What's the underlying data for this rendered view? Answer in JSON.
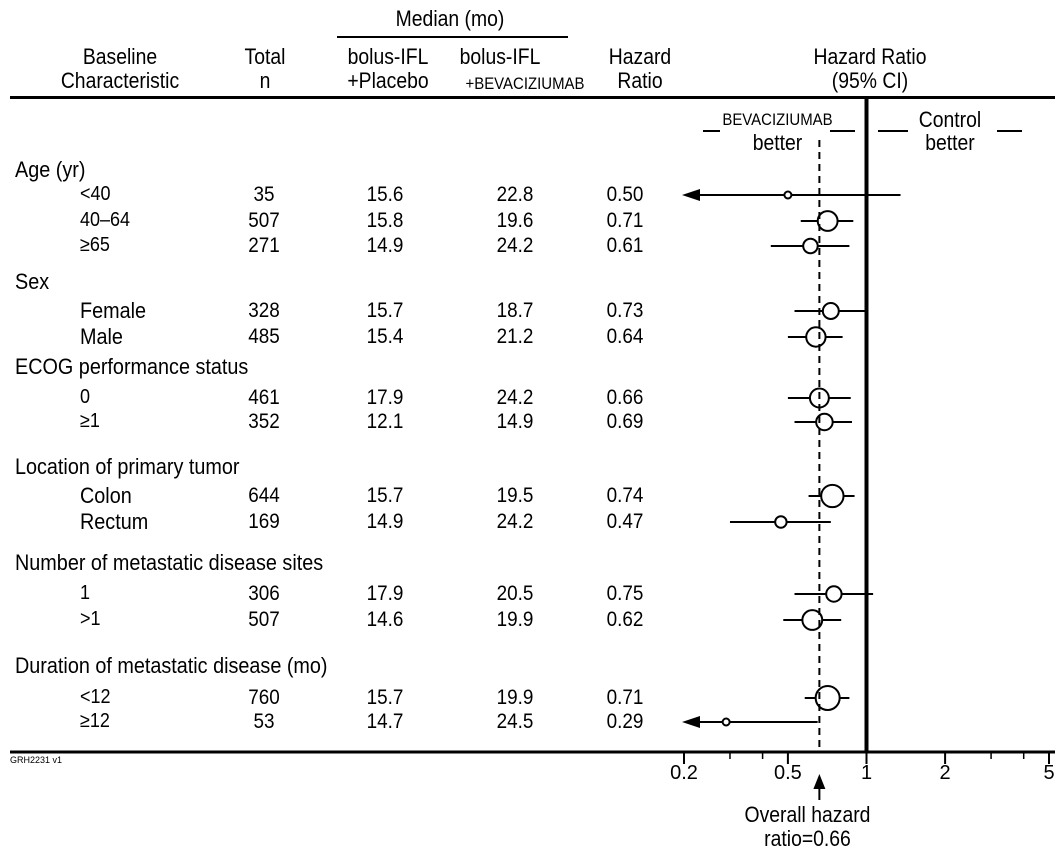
{
  "header": {
    "median_group": "Median (mo)",
    "col_characteristic": [
      "Baseline",
      "Characteristic"
    ],
    "col_total": [
      "Total",
      "n"
    ],
    "col_placebo": [
      "bolus-IFL",
      "+Placebo"
    ],
    "col_bev": [
      "bolus-IFL",
      "+BEVACIZIUMAB"
    ],
    "col_hr": [
      "Hazard",
      "Ratio"
    ],
    "col_ci": [
      "Hazard Ratio",
      "(95% CI)"
    ],
    "favors_left": [
      "BEVACIZIUMAB",
      "better"
    ],
    "favors_right": [
      "Control",
      "better"
    ]
  },
  "footer": {
    "code": "GRH2231 v1",
    "overall_label": [
      "Overall hazard",
      "ratio=0.66"
    ]
  },
  "chart_data": {
    "type": "forest",
    "x_scale": "log",
    "x_ticks": [
      0.2,
      0.5,
      1,
      2,
      5
    ],
    "x_tick_labels": [
      "0.2",
      "0.5",
      "1",
      "2",
      "5"
    ],
    "xlim": [
      0.2,
      5
    ],
    "reference_line": 1,
    "overall_hr": 0.66,
    "groups": [
      {
        "label": "Age (yr)",
        "rows": [
          {
            "label": "<40",
            "n": "35",
            "placebo": "15.6",
            "bev": "22.8",
            "hr_text": "0.50",
            "hr": 0.5,
            "lo": 0.17,
            "hi": 1.35,
            "arrow_left": true
          },
          {
            "label": "40–64",
            "n": "507",
            "placebo": "15.8",
            "bev": "19.6",
            "hr_text": "0.71",
            "hr": 0.71,
            "lo": 0.56,
            "hi": 0.89
          },
          {
            "label": "≥65",
            "n": "271",
            "placebo": "14.9",
            "bev": "24.2",
            "hr_text": "0.61",
            "hr": 0.61,
            "lo": 0.43,
            "hi": 0.86
          }
        ]
      },
      {
        "label": "Sex",
        "rows": [
          {
            "label": "Female",
            "n": "328",
            "placebo": "15.7",
            "bev": "18.7",
            "hr_text": "0.73",
            "hr": 0.73,
            "lo": 0.53,
            "hi": 1.0
          },
          {
            "label": "Male",
            "n": "485",
            "placebo": "15.4",
            "bev": "21.2",
            "hr_text": "0.64",
            "hr": 0.64,
            "lo": 0.5,
            "hi": 0.81
          }
        ]
      },
      {
        "label": "ECOG performance status",
        "rows": [
          {
            "label": "0",
            "n": "461",
            "placebo": "17.9",
            "bev": "24.2",
            "hr_text": "0.66",
            "hr": 0.66,
            "lo": 0.5,
            "hi": 0.87
          },
          {
            "label": "≥1",
            "n": "352",
            "placebo": "12.1",
            "bev": "14.9",
            "hr_text": "0.69",
            "hr": 0.69,
            "lo": 0.53,
            "hi": 0.88
          }
        ]
      },
      {
        "label": "Location of primary tumor",
        "rows": [
          {
            "label": "Colon",
            "n": "644",
            "placebo": "15.7",
            "bev": "19.5",
            "hr_text": "0.74",
            "hr": 0.74,
            "lo": 0.6,
            "hi": 0.9
          },
          {
            "label": "Rectum",
            "n": "169",
            "placebo": "14.9",
            "bev": "24.2",
            "hr_text": "0.47",
            "hr": 0.47,
            "lo": 0.3,
            "hi": 0.73
          }
        ]
      },
      {
        "label": "Number of metastatic disease sites",
        "rows": [
          {
            "label": "1",
            "n": "306",
            "placebo": "17.9",
            "bev": "20.5",
            "hr_text": "0.75",
            "hr": 0.75,
            "lo": 0.53,
            "hi": 1.06
          },
          {
            "label": ">1",
            "n": "507",
            "placebo": "14.6",
            "bev": "19.9",
            "hr_text": "0.62",
            "hr": 0.62,
            "lo": 0.48,
            "hi": 0.8
          }
        ]
      },
      {
        "label": "Duration of metastatic disease (mo)",
        "rows": [
          {
            "label": "<12",
            "n": "760",
            "placebo": "15.7",
            "bev": "19.9",
            "hr_text": "0.71",
            "hr": 0.71,
            "lo": 0.58,
            "hi": 0.86
          },
          {
            "label": "≥12",
            "n": "53",
            "placebo": "14.7",
            "bev": "24.5",
            "hr_text": "0.29",
            "hr": 0.29,
            "lo": 0.1,
            "hi": 0.65,
            "arrow_left": true
          }
        ]
      }
    ]
  }
}
